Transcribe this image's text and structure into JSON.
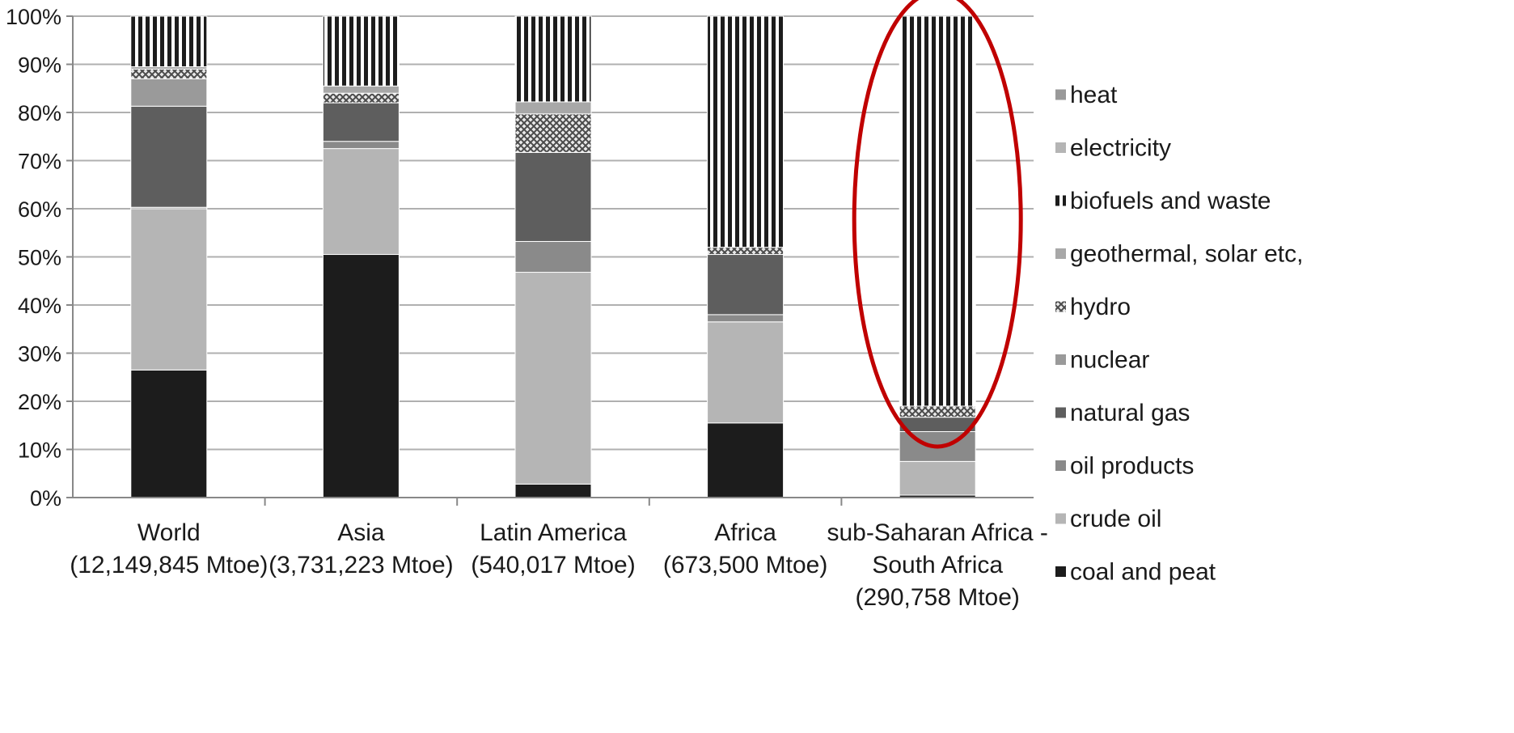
{
  "chart_data": {
    "type": "bar",
    "stacked": true,
    "normalized_percent": true,
    "ylim": [
      0,
      100
    ],
    "yticks": [
      "0%",
      "10%",
      "20%",
      "30%",
      "40%",
      "50%",
      "60%",
      "70%",
      "80%",
      "90%",
      "100%"
    ],
    "grid": true,
    "legend_position": "right",
    "categories": [
      {
        "lines": [
          "World",
          "(12,149,845 Mtoe)"
        ]
      },
      {
        "lines": [
          "Asia",
          "(3,731,223 Mtoe)"
        ]
      },
      {
        "lines": [
          "Latin America",
          "(540,017 Mtoe)"
        ]
      },
      {
        "lines": [
          "Africa",
          "(673,500 Mtoe)"
        ]
      },
      {
        "lines": [
          "sub-Saharan Africa -",
          "South Africa",
          "(290,758 Mtoe)"
        ]
      }
    ],
    "series": [
      {
        "name": "coal and peat",
        "color": "#1c1c1c",
        "pattern": "solid",
        "values": [
          26.5,
          50.5,
          2.8,
          15.5,
          0.5
        ]
      },
      {
        "name": "crude oil",
        "color": "#b5b5b5",
        "pattern": "solid",
        "values": [
          33.5,
          22.0,
          44.0,
          21.0,
          7.0
        ]
      },
      {
        "name": "oil products",
        "color": "#8a8a8a",
        "pattern": "solid",
        "values": [
          0.3,
          1.5,
          6.4,
          1.5,
          6.2
        ]
      },
      {
        "name": "natural gas",
        "color": "#5e5e5e",
        "pattern": "solid",
        "values": [
          21.0,
          8.0,
          18.5,
          12.5,
          3.0
        ]
      },
      {
        "name": "nuclear",
        "color": "#9a9a9a",
        "pattern": "solid",
        "values": [
          5.7,
          0.0,
          0.0,
          0.0,
          0.0
        ]
      },
      {
        "name": "hydro",
        "color": "#7a7a7a",
        "pattern": "hydro",
        "values": [
          2.0,
          2.0,
          8.0,
          1.5,
          2.3
        ]
      },
      {
        "name": "geothermal, solar etc,",
        "color": "#a8a8a8",
        "pattern": "solid",
        "values": [
          0.5,
          1.5,
          2.5,
          0.0,
          0.0
        ]
      },
      {
        "name": "biofuels and waste",
        "color": "#1c1c1c",
        "pattern": "vstripes",
        "values": [
          10.5,
          14.5,
          17.8,
          48.0,
          81.0
        ]
      },
      {
        "name": "electricity",
        "color": "#b5b5b5",
        "pattern": "solid",
        "values": [
          0,
          0,
          0,
          0,
          0
        ]
      },
      {
        "name": "heat",
        "color": "#999999",
        "pattern": "solid",
        "values": [
          0,
          0,
          0,
          0,
          0
        ]
      }
    ],
    "legend_order": [
      "heat",
      "electricity",
      "biofuels and waste",
      "geothermal, solar etc,",
      "hydro",
      "nuclear",
      "natural gas",
      "oil products",
      "crude oil",
      "coal and peat"
    ],
    "annotation": {
      "type": "ellipse",
      "target_category": 4,
      "color": "#c00000"
    }
  }
}
